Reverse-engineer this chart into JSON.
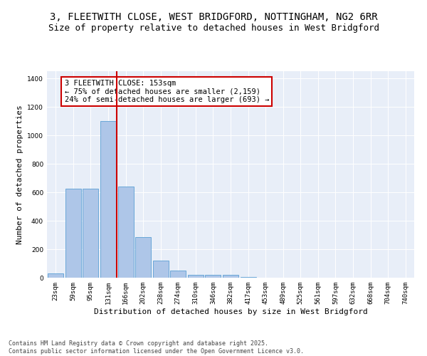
{
  "title_line1": "3, FLEETWITH CLOSE, WEST BRIDGFORD, NOTTINGHAM, NG2 6RR",
  "title_line2": "Size of property relative to detached houses in West Bridgford",
  "xlabel": "Distribution of detached houses by size in West Bridgford",
  "ylabel": "Number of detached properties",
  "categories": [
    "23sqm",
    "59sqm",
    "95sqm",
    "131sqm",
    "166sqm",
    "202sqm",
    "238sqm",
    "274sqm",
    "310sqm",
    "346sqm",
    "382sqm",
    "417sqm",
    "453sqm",
    "489sqm",
    "525sqm",
    "561sqm",
    "597sqm",
    "632sqm",
    "668sqm",
    "704sqm",
    "740sqm"
  ],
  "values": [
    30,
    625,
    625,
    1100,
    640,
    285,
    120,
    50,
    22,
    18,
    22,
    5,
    0,
    0,
    0,
    0,
    0,
    0,
    0,
    0,
    0
  ],
  "bar_color": "#aec6e8",
  "bar_edge_color": "#5a9fd4",
  "vline_color": "#cc0000",
  "annotation_text": "3 FLEETWITH CLOSE: 153sqm\n← 75% of detached houses are smaller (2,159)\n24% of semi-detached houses are larger (693) →",
  "annotation_box_color": "#cc0000",
  "ylim": [
    0,
    1450
  ],
  "yticks": [
    0,
    200,
    400,
    600,
    800,
    1000,
    1200,
    1400
  ],
  "bg_color": "#e8eef8",
  "footer_line1": "Contains HM Land Registry data © Crown copyright and database right 2025.",
  "footer_line2": "Contains public sector information licensed under the Open Government Licence v3.0.",
  "title_fontsize": 10,
  "subtitle_fontsize": 9,
  "axis_label_fontsize": 8,
  "tick_fontsize": 6.5,
  "annotation_fontsize": 7.5,
  "footer_fontsize": 6
}
